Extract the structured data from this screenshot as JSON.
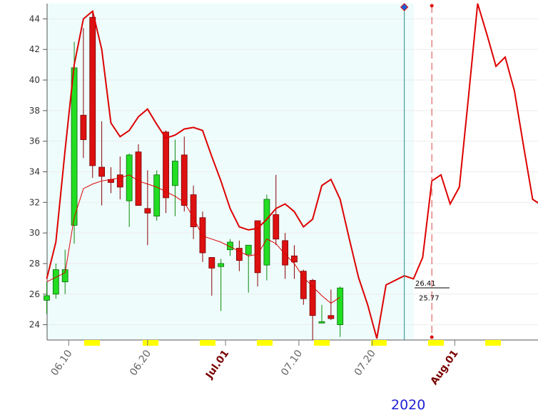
{
  "chart_data": {
    "type": "candlestick",
    "ylim": [
      23,
      45
    ],
    "y_ticks": [
      24,
      26,
      28,
      30,
      32,
      34,
      36,
      38,
      40,
      42,
      44
    ],
    "x_tick_labels": [
      {
        "label": "06.10",
        "bar": 2.4,
        "month": false
      },
      {
        "label": "06.20",
        "bar": 11,
        "month": false
      },
      {
        "label": "Jul.01",
        "bar": 19.5,
        "month": true
      },
      {
        "label": "07.10",
        "bar": 27.5,
        "month": false
      },
      {
        "label": "07.20",
        "bar": 35.5,
        "month": false
      },
      {
        "label": "Aug.01",
        "bar": 44.5,
        "month": true
      }
    ],
    "year_label": "2020",
    "colors": {
      "up": "#22dd22",
      "down": "#dd1111",
      "band": "#dd0000",
      "plot_bg": "#eefcfc",
      "marker": "#1a5fd6",
      "cursor": "#2a8a8a",
      "tick_bar": "#ffff00"
    },
    "candles": [
      {
        "o": 25.6,
        "h": 26.8,
        "l": 24.7,
        "c": 25.9
      },
      {
        "o": 26.0,
        "h": 28.0,
        "l": 25.7,
        "c": 27.6
      },
      {
        "o": 26.8,
        "h": 28.9,
        "l": 26.0,
        "c": 27.6
      },
      {
        "o": 30.5,
        "h": 42.5,
        "l": 29.3,
        "c": 40.8
      },
      {
        "o": 37.7,
        "h": 43.4,
        "l": 34.9,
        "c": 36.1
      },
      {
        "o": 44.1,
        "h": 44.5,
        "l": 33.6,
        "c": 34.4
      },
      {
        "o": 34.3,
        "h": 37.3,
        "l": 31.8,
        "c": 33.7
      },
      {
        "o": 33.5,
        "h": 34.3,
        "l": 32.6,
        "c": 33.3
      },
      {
        "o": 33.8,
        "h": 35.0,
        "l": 32.2,
        "c": 33.0
      },
      {
        "o": 32.1,
        "h": 35.2,
        "l": 30.4,
        "c": 35.1
      },
      {
        "o": 35.3,
        "h": 35.8,
        "l": 31.8,
        "c": 31.8
      },
      {
        "o": 31.6,
        "h": 34.1,
        "l": 29.2,
        "c": 31.3
      },
      {
        "o": 31.1,
        "h": 34.1,
        "l": 30.8,
        "c": 33.8
      },
      {
        "o": 36.6,
        "h": 36.7,
        "l": 31.3,
        "c": 32.3
      },
      {
        "o": 33.1,
        "h": 36.1,
        "l": 31.1,
        "c": 34.7
      },
      {
        "o": 35.1,
        "h": 36.3,
        "l": 31.4,
        "c": 31.8
      },
      {
        "o": 32.5,
        "h": 33.1,
        "l": 29.6,
        "c": 30.4
      },
      {
        "o": 31.0,
        "h": 31.4,
        "l": 28.1,
        "c": 28.7
      },
      {
        "o": 28.4,
        "h": 28.4,
        "l": 25.9,
        "c": 27.7
      },
      {
        "o": 27.8,
        "h": 28.3,
        "l": 24.9,
        "c": 28.0
      },
      {
        "o": 28.9,
        "h": 29.6,
        "l": 28.5,
        "c": 29.4
      },
      {
        "o": 29.0,
        "h": 29.5,
        "l": 27.5,
        "c": 28.2
      },
      {
        "o": 28.6,
        "h": 29.2,
        "l": 26.1,
        "c": 29.2
      },
      {
        "o": 30.8,
        "h": 30.8,
        "l": 26.5,
        "c": 27.4
      },
      {
        "o": 27.9,
        "h": 32.5,
        "l": 26.9,
        "c": 32.2
      },
      {
        "o": 31.2,
        "h": 33.8,
        "l": 29.2,
        "c": 29.6
      },
      {
        "o": 29.5,
        "h": 30.0,
        "l": 27.0,
        "c": 27.9
      },
      {
        "o": 28.5,
        "h": 29.2,
        "l": 27.0,
        "c": 28.1
      },
      {
        "o": 27.5,
        "h": 27.6,
        "l": 25.3,
        "c": 25.7
      },
      {
        "o": 26.9,
        "h": 27.0,
        "l": 23.0,
        "c": 24.6
      },
      {
        "o": 24.2,
        "h": 25.3,
        "l": 24.1,
        "c": 24.2
      },
      {
        "o": 24.6,
        "h": 26.3,
        "l": 24.3,
        "c": 24.4
      },
      {
        "o": 24.0,
        "h": 26.5,
        "l": 23.2,
        "c": 26.4
      }
    ],
    "middle_line": [
      26.8,
      27.1,
      27.4,
      31.0,
      32.9,
      33.2,
      33.4,
      33.5,
      33.6,
      33.8,
      33.4,
      33.2,
      33.0,
      32.7,
      32.4,
      32.0,
      31.0,
      29.8,
      29.6,
      29.4,
      29.1,
      28.8,
      28.5,
      28.6,
      29.6,
      29.3,
      28.6,
      28.0,
      27.1,
      26.5,
      25.9,
      25.4,
      25.8
    ],
    "upper_line": [
      {
        "x": 0,
        "y": 27.0
      },
      {
        "x": 1,
        "y": 29.4
      },
      {
        "x": 2,
        "y": 35.4
      },
      {
        "x": 3,
        "y": 41.0
      },
      {
        "x": 4,
        "y": 44.0
      },
      {
        "x": 5,
        "y": 44.5
      },
      {
        "x": 6,
        "y": 42.0
      },
      {
        "x": 7,
        "y": 37.2
      },
      {
        "x": 8,
        "y": 36.3
      },
      {
        "x": 9,
        "y": 36.7
      },
      {
        "x": 10,
        "y": 37.6
      },
      {
        "x": 11,
        "y": 38.1
      },
      {
        "x": 12,
        "y": 37.1
      },
      {
        "x": 13,
        "y": 36.2
      },
      {
        "x": 14,
        "y": 36.4
      },
      {
        "x": 15,
        "y": 36.8
      },
      {
        "x": 16,
        "y": 36.9
      },
      {
        "x": 17,
        "y": 36.7
      },
      {
        "x": 18,
        "y": 35.0
      },
      {
        "x": 19,
        "y": 33.4
      },
      {
        "x": 20,
        "y": 31.6
      },
      {
        "x": 21,
        "y": 30.4
      },
      {
        "x": 22,
        "y": 30.2
      },
      {
        "x": 23,
        "y": 30.3
      },
      {
        "x": 24,
        "y": 30.9
      },
      {
        "x": 25,
        "y": 31.6
      },
      {
        "x": 26,
        "y": 31.9
      },
      {
        "x": 27,
        "y": 31.4
      },
      {
        "x": 28,
        "y": 30.4
      },
      {
        "x": 29,
        "y": 30.9
      },
      {
        "x": 30,
        "y": 33.1
      },
      {
        "x": 31,
        "y": 33.5
      },
      {
        "x": 32,
        "y": 32.2
      },
      {
        "x": 33,
        "y": 29.6
      },
      {
        "x": 34,
        "y": 27.1
      },
      {
        "x": 35,
        "y": 25.3
      },
      {
        "x": 36,
        "y": 23.1
      },
      {
        "x": 37,
        "y": 26.6
      },
      {
        "x": 38,
        "y": 26.9
      },
      {
        "x": 39,
        "y": 27.2
      },
      {
        "x": 40,
        "y": 27.0
      },
      {
        "x": 41,
        "y": 28.4
      },
      {
        "x": 42,
        "y": 33.4
      },
      {
        "x": 43,
        "y": 33.8
      },
      {
        "x": 44,
        "y": 31.9
      },
      {
        "x": 45,
        "y": 33.0
      },
      {
        "x": 46,
        "y": 38.9
      },
      {
        "x": 47,
        "y": 45.0
      },
      {
        "x": 48,
        "y": 43.0
      },
      {
        "x": 49,
        "y": 40.9
      },
      {
        "x": 50,
        "y": 41.5
      },
      {
        "x": 51,
        "y": 39.3
      },
      {
        "x": 52,
        "y": 35.7
      },
      {
        "x": 53,
        "y": 32.2
      },
      {
        "x": 54,
        "y": 31.8
      },
      {
        "x": 55,
        "y": 34.6
      }
    ],
    "last_close_label": "26.41",
    "middle_value_label": "25.77",
    "cursor_bar": 39,
    "forecast_bar": 42
  }
}
